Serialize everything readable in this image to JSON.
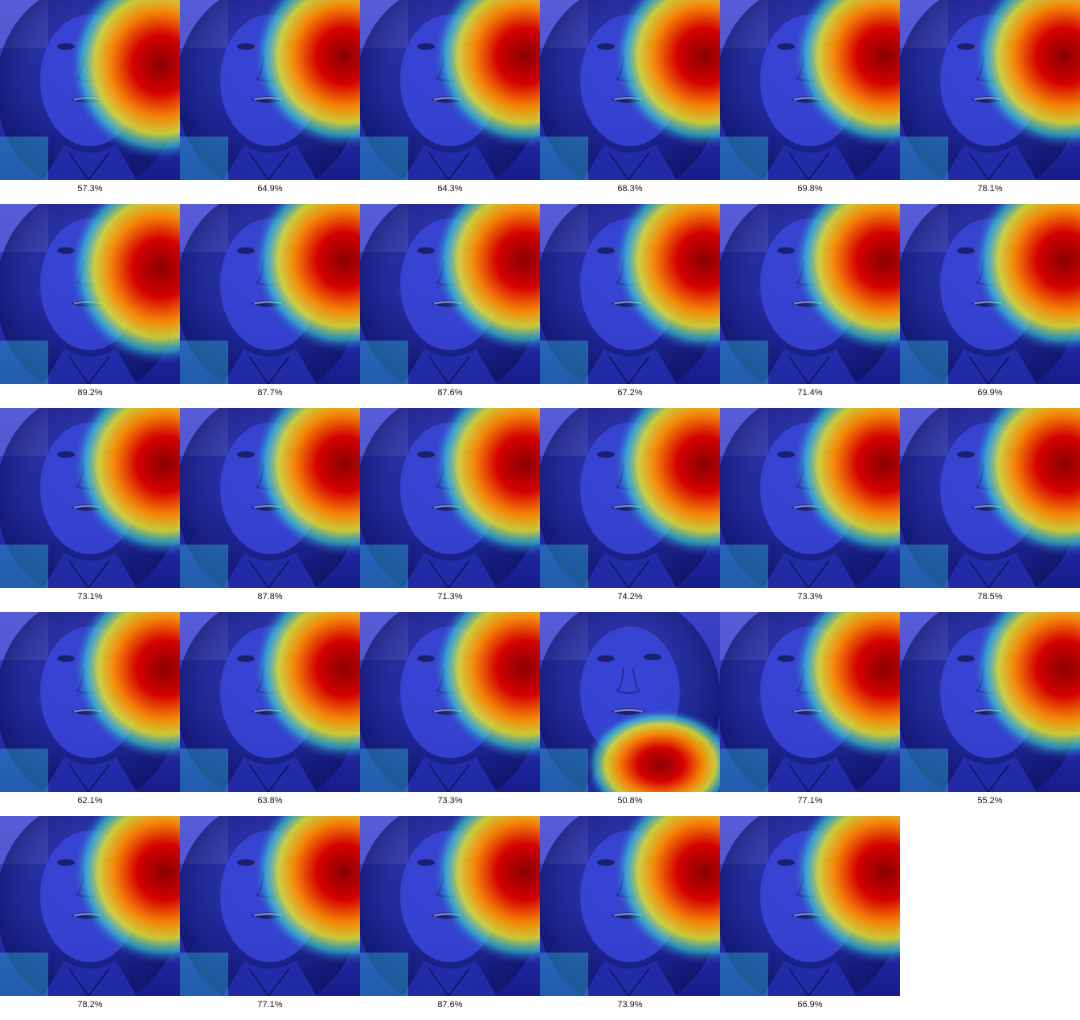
{
  "overlay": {
    "colormap": "jet",
    "base_tint": "#1b2ad6",
    "hot_color": "#a30000",
    "warm_color": "#ffd21a",
    "cool_color": "#2dd6e6"
  },
  "frames": [
    {
      "label": "57.3%",
      "hotspot": "right-middle"
    },
    {
      "label": "64.9%",
      "hotspot": "right-upper"
    },
    {
      "label": "64.3%",
      "hotspot": "right-upper"
    },
    {
      "label": "68.3%",
      "hotspot": "right-upper"
    },
    {
      "label": "69.8%",
      "hotspot": "right-upper"
    },
    {
      "label": "78.1%",
      "hotspot": "right-upper"
    },
    {
      "label": "89.2%",
      "hotspot": "right-middle"
    },
    {
      "label": "87.7%",
      "hotspot": "right-upper"
    },
    {
      "label": "87.6%",
      "hotspot": "right-upper"
    },
    {
      "label": "67.2%",
      "hotspot": "right-upper"
    },
    {
      "label": "71.4%",
      "hotspot": "right-upper"
    },
    {
      "label": "69.9%",
      "hotspot": "right-upper"
    },
    {
      "label": "73.1%",
      "hotspot": "right-upper"
    },
    {
      "label": "87.8%",
      "hotspot": "right-upper"
    },
    {
      "label": "71.3%",
      "hotspot": "right-upper"
    },
    {
      "label": "74.2%",
      "hotspot": "right-upper"
    },
    {
      "label": "73.3%",
      "hotspot": "right-upper"
    },
    {
      "label": "78.5%",
      "hotspot": "right-upper"
    },
    {
      "label": "62.1%",
      "hotspot": "right-upper"
    },
    {
      "label": "63.8%",
      "hotspot": "right-upper"
    },
    {
      "label": "73.3%",
      "hotspot": "right-upper"
    },
    {
      "label": "50.8%",
      "hotspot": "bottom-right"
    },
    {
      "label": "77.1%",
      "hotspot": "right-upper"
    },
    {
      "label": "55.2%",
      "hotspot": "right-upper"
    },
    {
      "label": "78.2%",
      "hotspot": "right-upper"
    },
    {
      "label": "77.1%",
      "hotspot": "right-upper"
    },
    {
      "label": "87.6%",
      "hotspot": "right-upper"
    },
    {
      "label": "73.9%",
      "hotspot": "right-upper"
    },
    {
      "label": "66.9%",
      "hotspot": "right-upper"
    }
  ]
}
